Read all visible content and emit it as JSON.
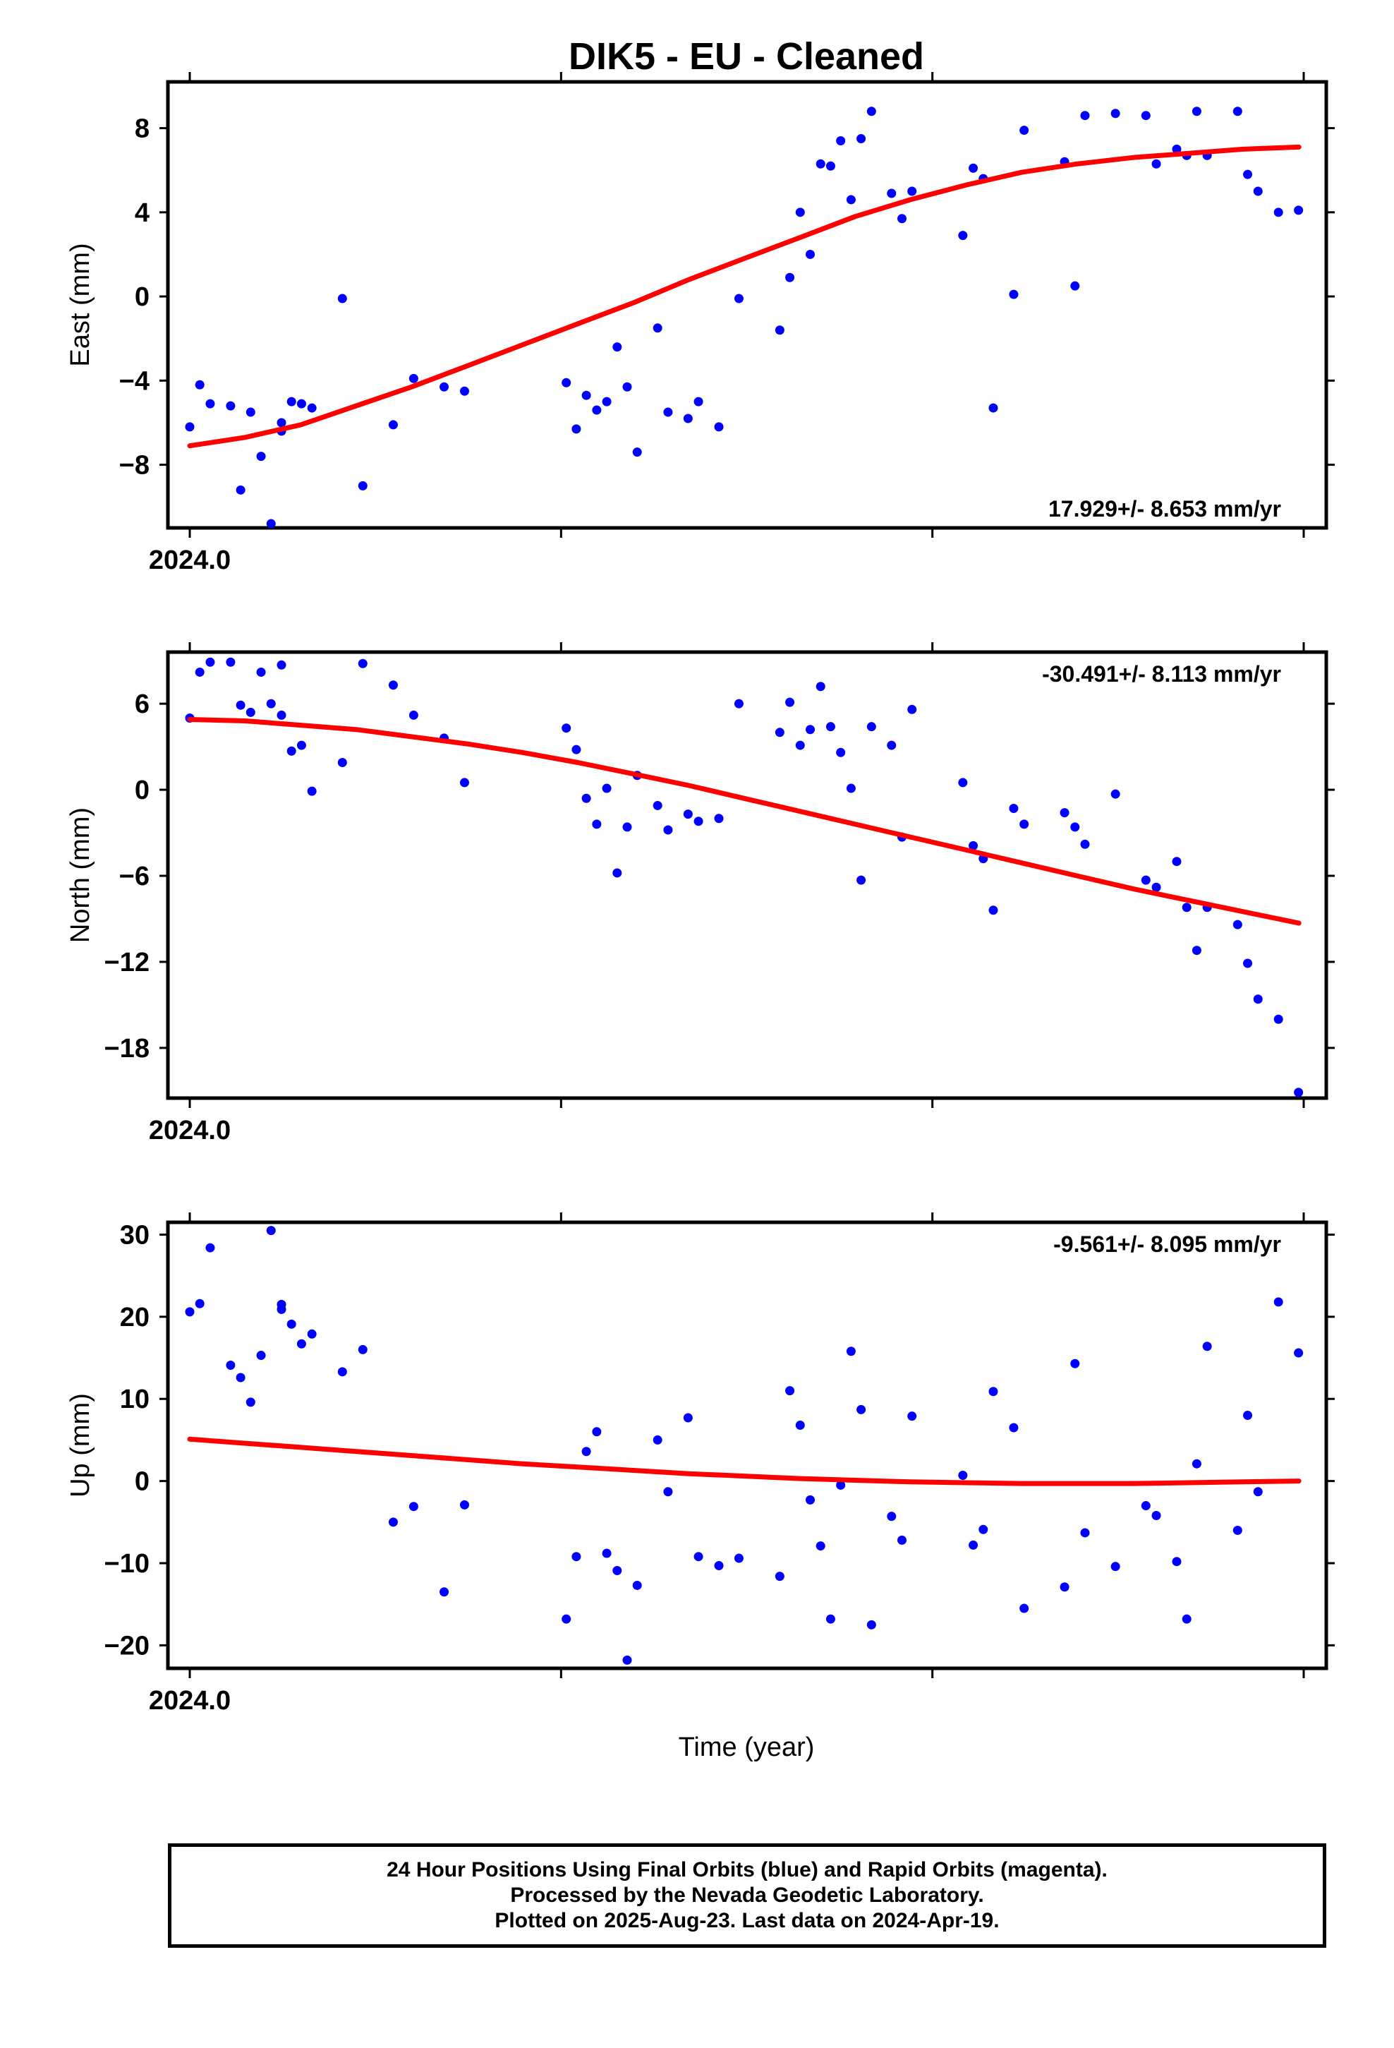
{
  "title": "DIK5  - EU - Cleaned",
  "xlabel": "Time (year)",
  "footer": {
    "line1": "24 Hour Positions Using Final Orbits (blue) and Rapid Orbits (magenta).",
    "line2": "Processed by the Nevada Geodetic Laboratory.",
    "line3": "Plotted on 2025-Aug-23. Last data on 2024-Apr-19."
  },
  "colors": {
    "points": "#0000ff",
    "fit": "#ff0000",
    "frame": "#000000"
  },
  "chart_data": [
    {
      "type": "scatter",
      "ylabel": "East (mm)",
      "rate_label": "17.929+/- 8.653 mm/yr",
      "rate_position": "bottom-right",
      "x_tick_labels": [
        "2024.0"
      ],
      "xlim": [
        2024.0,
        2024.3
      ],
      "ylim": [
        -11,
        10.2
      ],
      "yticks": [
        8,
        4,
        0,
        -4,
        -8
      ],
      "ytick_labels": [
        "8",
        "4",
        "0",
        "−4",
        "−8"
      ],
      "x_tick_values": [
        2024.0,
        2024.1,
        2024.2,
        2024.3
      ],
      "series": [
        {
          "kind": "points",
          "x": [
            2024.0,
            2024.0027,
            2024.0055,
            2024.011,
            2024.0137,
            2024.0164,
            2024.0192,
            2024.0219,
            2024.0247,
            2024.0247,
            2024.0274,
            2024.0301,
            2024.0329,
            2024.0411,
            2024.0466,
            2024.0548,
            2024.0603,
            2024.0685,
            2024.074,
            2024.1014,
            2024.1041,
            2024.1068,
            2024.1096,
            2024.1123,
            2024.1151,
            2024.1178,
            2024.1205,
            2024.126,
            2024.1288,
            2024.1342,
            2024.137,
            2024.1425,
            2024.1479,
            2024.1589,
            2024.1616,
            2024.1644,
            2024.1671,
            2024.1699,
            2024.1726,
            2024.1753,
            2024.1781,
            2024.1808,
            2024.1836,
            2024.189,
            2024.1918,
            2024.1945,
            2024.2082,
            2024.211,
            2024.2137,
            2024.2164,
            2024.2219,
            2024.2247,
            2024.2356,
            2024.2384,
            2024.2411,
            2024.2493,
            2024.2575,
            2024.2603,
            2024.2658,
            2024.2685,
            2024.2712,
            2024.274,
            2024.2822,
            2024.2849,
            2024.2877,
            2024.2932,
            2024.2986
          ],
          "y": [
            -6.2,
            -4.2,
            -5.1,
            -5.2,
            -9.2,
            -5.5,
            -7.6,
            -10.8,
            -6.0,
            -6.4,
            -5.0,
            -5.1,
            -5.3,
            -0.1,
            -9.0,
            -6.1,
            -3.9,
            -4.3,
            -4.5,
            -4.1,
            -6.3,
            -4.7,
            -5.4,
            -5.0,
            -2.4,
            -4.3,
            -7.4,
            -1.5,
            -5.5,
            -5.8,
            -5.0,
            -6.2,
            -0.1,
            -1.6,
            0.9,
            4.0,
            2.0,
            6.3,
            6.2,
            7.4,
            4.6,
            7.5,
            8.8,
            4.9,
            3.7,
            5.0,
            2.9,
            6.1,
            5.6,
            -5.3,
            0.1,
            7.9,
            6.4,
            0.5,
            8.6,
            8.7,
            8.6,
            6.3,
            7.0,
            6.7,
            8.8,
            6.7,
            8.8,
            5.8,
            5.0,
            4.0,
            4.1
          ]
        },
        {
          "kind": "fit",
          "x": [
            2024.0,
            2024.0149,
            2024.0299,
            2024.0448,
            2024.0597,
            2024.0747,
            2024.0896,
            2024.1045,
            2024.1195,
            2024.1344,
            2024.1493,
            2024.1643,
            2024.1792,
            2024.1941,
            2024.2091,
            2024.224,
            2024.2389,
            2024.2539,
            2024.2688,
            2024.2837,
            2024.2987
          ],
          "y": [
            -7.1,
            -6.7,
            -6.1,
            -5.2,
            -4.3,
            -3.3,
            -2.3,
            -1.3,
            -0.3,
            0.8,
            1.8,
            2.8,
            3.8,
            4.6,
            5.3,
            5.9,
            6.3,
            6.6,
            6.8,
            7.0,
            7.1
          ]
        }
      ]
    },
    {
      "type": "scatter",
      "ylabel": "North (mm)",
      "rate_label": "-30.491+/- 8.113 mm/yr",
      "rate_position": "top-right",
      "x_tick_labels": [
        "2024.0"
      ],
      "xlim": [
        2024.0,
        2024.3
      ],
      "ylim": [
        -21.5,
        9.6
      ],
      "yticks": [
        6,
        0,
        -6,
        -12,
        -18
      ],
      "ytick_labels": [
        "6",
        "0",
        "−6",
        "−12",
        "−18"
      ],
      "x_tick_values": [
        2024.0,
        2024.1,
        2024.2,
        2024.3
      ],
      "series": [
        {
          "kind": "points",
          "x": [
            2024.0,
            2024.0027,
            2024.0055,
            2024.011,
            2024.0137,
            2024.0164,
            2024.0192,
            2024.0219,
            2024.0247,
            2024.0247,
            2024.0274,
            2024.0301,
            2024.0329,
            2024.0411,
            2024.0466,
            2024.0548,
            2024.0603,
            2024.0685,
            2024.074,
            2024.1014,
            2024.1041,
            2024.1068,
            2024.1096,
            2024.1123,
            2024.1151,
            2024.1178,
            2024.1205,
            2024.126,
            2024.1288,
            2024.1342,
            2024.137,
            2024.1425,
            2024.1479,
            2024.1589,
            2024.1616,
            2024.1644,
            2024.1671,
            2024.1699,
            2024.1726,
            2024.1753,
            2024.1781,
            2024.1808,
            2024.1836,
            2024.189,
            2024.1918,
            2024.1945,
            2024.2082,
            2024.211,
            2024.2137,
            2024.2164,
            2024.2219,
            2024.2247,
            2024.2356,
            2024.2384,
            2024.2411,
            2024.2493,
            2024.2575,
            2024.2603,
            2024.2658,
            2024.2685,
            2024.2712,
            2024.274,
            2024.2822,
            2024.2849,
            2024.2877,
            2024.2932,
            2024.2986
          ],
          "y": [
            5.0,
            8.2,
            8.9,
            8.9,
            5.9,
            5.4,
            8.2,
            6.0,
            5.2,
            8.7,
            2.7,
            3.1,
            -0.1,
            1.9,
            8.8,
            7.3,
            5.2,
            3.6,
            0.5,
            4.3,
            2.8,
            -0.6,
            -2.4,
            0.1,
            -5.8,
            -2.6,
            1.0,
            -1.1,
            -2.8,
            -1.7,
            -2.2,
            -2.0,
            6.0,
            4.0,
            6.1,
            3.1,
            4.2,
            7.2,
            4.4,
            2.6,
            0.1,
            -6.3,
            4.4,
            3.1,
            -3.3,
            5.6,
            0.5,
            -3.9,
            -4.8,
            -8.4,
            -1.3,
            -2.4,
            -1.6,
            -2.6,
            -3.8,
            -0.3,
            -6.3,
            -6.8,
            -5.0,
            -8.2,
            -11.2,
            -8.2,
            -9.4,
            -12.1,
            -14.6,
            -16.0,
            -21.1
          ]
        },
        {
          "kind": "fit",
          "x": [
            2024.0,
            2024.0149,
            2024.0299,
            2024.0448,
            2024.0597,
            2024.0747,
            2024.0896,
            2024.1045,
            2024.1195,
            2024.1344,
            2024.1493,
            2024.1643,
            2024.1792,
            2024.1941,
            2024.2091,
            2024.224,
            2024.2389,
            2024.2539,
            2024.2688,
            2024.2837,
            2024.2987
          ],
          "y": [
            4.9,
            4.8,
            4.5,
            4.2,
            3.7,
            3.2,
            2.6,
            1.9,
            1.1,
            0.3,
            -0.6,
            -1.5,
            -2.4,
            -3.3,
            -4.2,
            -5.1,
            -6.0,
            -6.9,
            -7.7,
            -8.5,
            -9.3
          ]
        }
      ]
    },
    {
      "type": "scatter",
      "ylabel": "Up (mm)",
      "rate_label": "-9.561+/- 8.095 mm/yr",
      "rate_position": "top-right",
      "x_tick_labels": [
        "2024.0"
      ],
      "xlim": [
        2024.0,
        2024.3
      ],
      "ylim": [
        -22.8,
        31.5
      ],
      "yticks": [
        30,
        20,
        10,
        0,
        -10,
        -20
      ],
      "ytick_labels": [
        "30",
        "20",
        "10",
        "0",
        "−10",
        "−20"
      ],
      "x_tick_values": [
        2024.0,
        2024.1,
        2024.2,
        2024.3
      ],
      "series": [
        {
          "kind": "points",
          "x": [
            2024.0,
            2024.0027,
            2024.0055,
            2024.011,
            2024.0137,
            2024.0164,
            2024.0192,
            2024.0219,
            2024.0247,
            2024.0247,
            2024.0274,
            2024.0301,
            2024.0329,
            2024.0411,
            2024.0466,
            2024.0548,
            2024.0603,
            2024.0685,
            2024.074,
            2024.1014,
            2024.1041,
            2024.1068,
            2024.1096,
            2024.1123,
            2024.1151,
            2024.1178,
            2024.1205,
            2024.126,
            2024.1288,
            2024.1342,
            2024.137,
            2024.1425,
            2024.1479,
            2024.1589,
            2024.1616,
            2024.1644,
            2024.1671,
            2024.1699,
            2024.1726,
            2024.1753,
            2024.1781,
            2024.1808,
            2024.1836,
            2024.189,
            2024.1918,
            2024.1945,
            2024.2082,
            2024.211,
            2024.2137,
            2024.2164,
            2024.2219,
            2024.2247,
            2024.2356,
            2024.2384,
            2024.2411,
            2024.2493,
            2024.2575,
            2024.2603,
            2024.2658,
            2024.2685,
            2024.2712,
            2024.274,
            2024.2822,
            2024.2849,
            2024.2877,
            2024.2932,
            2024.2986
          ],
          "y": [
            20.6,
            21.6,
            28.4,
            14.1,
            12.6,
            9.6,
            15.3,
            30.5,
            21.5,
            20.9,
            19.1,
            16.7,
            17.9,
            13.3,
            16.0,
            -5.0,
            -3.1,
            -13.5,
            -2.9,
            -16.8,
            -9.2,
            3.6,
            6.0,
            -8.8,
            -10.9,
            -21.8,
            -12.7,
            5.0,
            -1.3,
            7.7,
            -9.2,
            -10.3,
            -9.4,
            -11.6,
            11.0,
            6.8,
            -2.3,
            -7.9,
            -16.8,
            -0.5,
            15.8,
            8.7,
            -17.5,
            -4.3,
            -7.2,
            7.9,
            0.7,
            -7.8,
            -5.9,
            10.9,
            6.5,
            -15.5,
            -12.9,
            14.3,
            -6.3,
            -10.4,
            -3.0,
            -4.2,
            -9.8,
            -16.8,
            2.1,
            16.4,
            -6.0,
            8.0,
            -1.3,
            21.8,
            15.6
          ]
        },
        {
          "kind": "fit",
          "x": [
            2024.0,
            2024.0149,
            2024.0299,
            2024.0448,
            2024.0597,
            2024.0747,
            2024.0896,
            2024.1045,
            2024.1195,
            2024.1344,
            2024.1493,
            2024.1643,
            2024.1792,
            2024.1941,
            2024.2091,
            2024.224,
            2024.2389,
            2024.2539,
            2024.2688,
            2024.2837,
            2024.2987
          ],
          "y": [
            5.1,
            4.6,
            4.1,
            3.6,
            3.1,
            2.6,
            2.1,
            1.7,
            1.3,
            0.9,
            0.6,
            0.3,
            0.1,
            -0.1,
            -0.2,
            -0.3,
            -0.3,
            -0.3,
            -0.2,
            -0.1,
            0.0
          ]
        }
      ]
    }
  ]
}
